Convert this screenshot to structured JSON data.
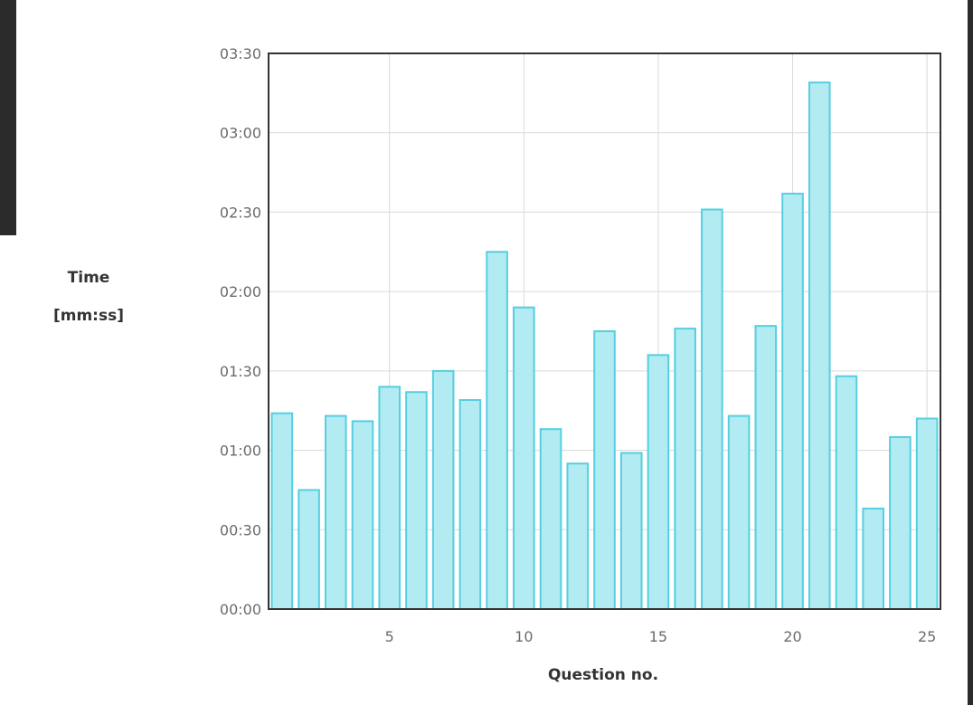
{
  "chart_data": {
    "type": "bar",
    "title": "",
    "xlabel": "Question no.",
    "ylabel": [
      "Time",
      "[mm:ss]"
    ],
    "x": [
      1,
      2,
      3,
      4,
      5,
      6,
      7,
      8,
      9,
      10,
      11,
      12,
      13,
      14,
      15,
      16,
      17,
      18,
      19,
      20,
      21,
      22,
      23,
      24,
      25
    ],
    "values_seconds": [
      74,
      45,
      73,
      71,
      84,
      82,
      90,
      79,
      135,
      114,
      68,
      55,
      105,
      59,
      96,
      106,
      151,
      73,
      107,
      157,
      199,
      88,
      38,
      65,
      72
    ],
    "xticks": [
      5,
      10,
      15,
      20,
      25
    ],
    "xtick_labels": [
      "5",
      "10",
      "15",
      "20",
      "25"
    ],
    "yticks_seconds": [
      0,
      30,
      60,
      90,
      120,
      150,
      180,
      210
    ],
    "ytick_labels": [
      "00:00",
      "00:30",
      "01:00",
      "01:30",
      "02:00",
      "02:30",
      "03:00",
      "03:30"
    ],
    "ylim_seconds": [
      0,
      210
    ],
    "xlim": [
      0.5,
      25.5
    ],
    "grid": true,
    "legend": "none",
    "bar_fill": "#b3ebf2",
    "bar_stroke": "#55cfe0",
    "grid_color": "#d9d9d9",
    "frame_color": "#333333"
  }
}
